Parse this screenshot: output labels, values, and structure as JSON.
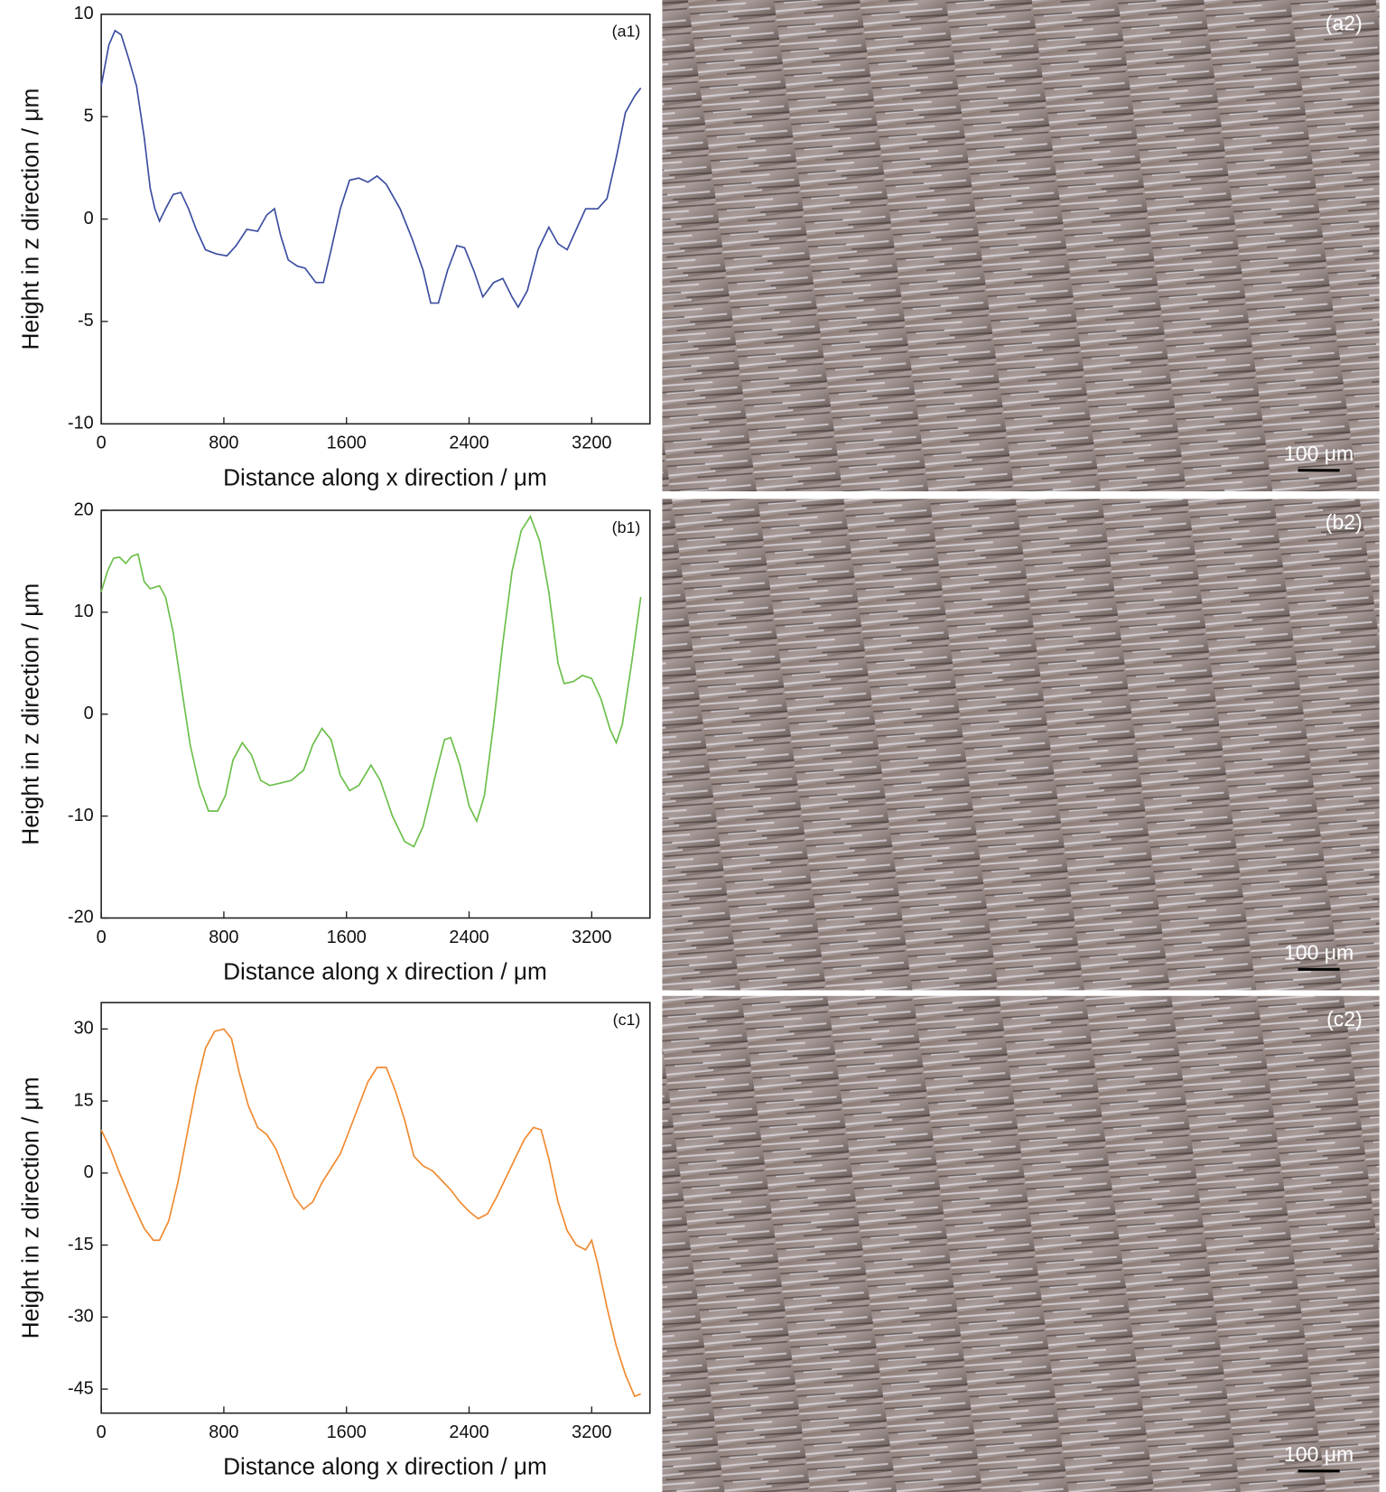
{
  "chart_data": [
    {
      "type": "line",
      "label": "(a1)",
      "xlabel": "Distance along x direction / μm",
      "ylabel": "Height in z direction / μm",
      "xlim": [
        0,
        3580
      ],
      "ylim": [
        -10,
        10
      ],
      "xticks": [
        0,
        800,
        1600,
        2400,
        3200
      ],
      "yticks": [
        -10,
        -5,
        0,
        5,
        10
      ],
      "color": "#3b4ea0",
      "x": [
        0,
        50,
        90,
        130,
        180,
        230,
        280,
        320,
        350,
        380,
        420,
        470,
        520,
        570,
        620,
        680,
        750,
        820,
        880,
        950,
        1020,
        1080,
        1130,
        1170,
        1220,
        1280,
        1330,
        1400,
        1450,
        1500,
        1560,
        1620,
        1680,
        1740,
        1800,
        1860,
        1950,
        2030,
        2100,
        2150,
        2200,
        2260,
        2320,
        2370,
        2430,
        2490,
        2560,
        2620,
        2680,
        2720,
        2780,
        2850,
        2920,
        2980,
        3040,
        3100,
        3160,
        3240,
        3300,
        3360,
        3420,
        3480,
        3520
      ],
      "values": [
        6.5,
        8.5,
        9.2,
        9,
        7.8,
        6.5,
        4,
        1.5,
        0.5,
        -0.1,
        0.5,
        1.2,
        1.3,
        0.5,
        -0.5,
        -1.5,
        -1.7,
        -1.8,
        -1.3,
        -0.5,
        -0.6,
        0.2,
        0.5,
        -0.8,
        -2,
        -2.3,
        -2.4,
        -3.1,
        -3.1,
        -1.5,
        0.5,
        1.9,
        2,
        1.8,
        2.1,
        1.7,
        0.5,
        -1,
        -2.5,
        -4.1,
        -4.1,
        -2.5,
        -1.3,
        -1.4,
        -2.5,
        -3.8,
        -3.1,
        -2.9,
        -3.8,
        -4.3,
        -3.5,
        -1.5,
        -0.4,
        -1.2,
        -1.5,
        -0.5,
        0.5,
        0.5,
        1,
        3,
        5.2,
        6,
        6.4
      ]
    },
    {
      "type": "line",
      "label": "(b1)",
      "xlabel": "Distance along x direction / μm",
      "ylabel": "Height in z direction / μm",
      "xlim": [
        0,
        3580
      ],
      "ylim": [
        -20,
        20
      ],
      "xticks": [
        0,
        800,
        1600,
        2400,
        3200
      ],
      "yticks": [
        -20,
        -10,
        0,
        10,
        20
      ],
      "color": "#6cbf4a",
      "x": [
        0,
        40,
        80,
        120,
        160,
        200,
        240,
        280,
        320,
        380,
        420,
        470,
        520,
        580,
        640,
        700,
        760,
        810,
        860,
        920,
        980,
        1040,
        1100,
        1160,
        1240,
        1320,
        1380,
        1440,
        1500,
        1560,
        1620,
        1680,
        1760,
        1820,
        1900,
        1980,
        2040,
        2100,
        2180,
        2240,
        2280,
        2340,
        2400,
        2450,
        2500,
        2560,
        2620,
        2680,
        2740,
        2800,
        2860,
        2920,
        2980,
        3020,
        3080,
        3140,
        3200,
        3260,
        3320,
        3360,
        3400,
        3460,
        3520
      ],
      "values": [
        12,
        14,
        15.3,
        15.4,
        14.8,
        15.5,
        15.7,
        13,
        12.3,
        12.6,
        11.5,
        8,
        3,
        -3,
        -7,
        -9.5,
        -9.5,
        -8,
        -4.5,
        -2.8,
        -4,
        -6.5,
        -7,
        -6.8,
        -6.5,
        -5.5,
        -3,
        -1.4,
        -2.5,
        -6,
        -7.5,
        -7,
        -5,
        -6.5,
        -10,
        -12.5,
        -13,
        -11,
        -6,
        -2.5,
        -2.3,
        -5,
        -9,
        -10.5,
        -8,
        -1,
        7,
        14,
        18,
        19.4,
        17,
        12,
        5,
        3,
        3.2,
        3.8,
        3.5,
        1.5,
        -1.5,
        -2.8,
        -1,
        5,
        11.5
      ]
    },
    {
      "type": "line",
      "label": "(c1)",
      "xlabel": "Distance along x direction / μm",
      "ylabel": "Height in z direction / μm",
      "xlim": [
        0,
        3580
      ],
      "ylim": [
        -50,
        35.5
      ],
      "xticks": [
        0,
        800,
        1600,
        2400,
        3200
      ],
      "yticks": [
        -45,
        -30,
        -15,
        0,
        15,
        30
      ],
      "color": "#f08a30",
      "x": [
        0,
        60,
        120,
        200,
        280,
        340,
        380,
        440,
        500,
        560,
        620,
        680,
        740,
        800,
        850,
        900,
        960,
        1020,
        1080,
        1140,
        1200,
        1260,
        1320,
        1380,
        1440,
        1500,
        1560,
        1620,
        1680,
        1740,
        1800,
        1860,
        1920,
        1980,
        2040,
        2100,
        2160,
        2220,
        2280,
        2340,
        2400,
        2460,
        2520,
        2580,
        2640,
        2700,
        2760,
        2820,
        2870,
        2920,
        2980,
        3040,
        3100,
        3160,
        3200,
        3240,
        3300,
        3360,
        3420,
        3480,
        3520
      ],
      "values": [
        9,
        5,
        0,
        -6,
        -11.5,
        -14,
        -14,
        -10,
        -2,
        8,
        18,
        26,
        29.5,
        30,
        28,
        21,
        14,
        9.5,
        8,
        5,
        0,
        -5,
        -7.5,
        -6,
        -2,
        1,
        4,
        9,
        14,
        19,
        22,
        22,
        17,
        11,
        3.5,
        1.5,
        0.5,
        -1.5,
        -3.5,
        -6,
        -8,
        -9.5,
        -8.5,
        -5,
        -1,
        3,
        7,
        9.5,
        9,
        3,
        -6,
        -12,
        -15,
        -16,
        -14,
        -19,
        -28,
        -36,
        -42,
        -46.5,
        -46
      ]
    }
  ],
  "images": [
    {
      "label": "(a2)",
      "scale_bar": "100 μm"
    },
    {
      "label": "(b2)",
      "scale_bar": "100 μm"
    },
    {
      "label": "(c2)",
      "scale_bar": "100 μm"
    }
  ]
}
